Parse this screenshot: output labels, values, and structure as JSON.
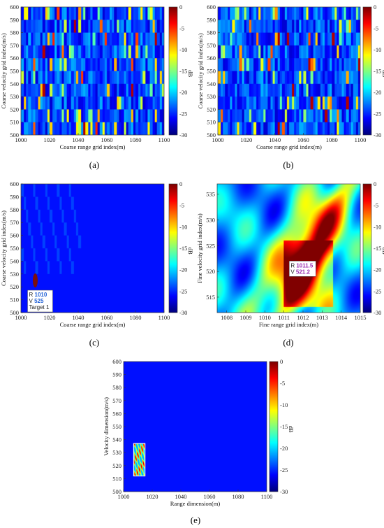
{
  "chart_data": [
    {
      "id": "a",
      "type": "heatmap",
      "caption": "(a)",
      "xlabel": "Coarse range grid index(m)",
      "ylabel": "Coarse velocity grid index(m/s)",
      "xlim": [
        1000,
        1100
      ],
      "ylim": [
        500,
        600
      ],
      "xticks": [
        "1000",
        "1020",
        "1040",
        "1060",
        "1080",
        "1100"
      ],
      "yticks": [
        "500",
        "510",
        "520",
        "530",
        "540",
        "550",
        "560",
        "570",
        "580",
        "590",
        "600"
      ],
      "colorbar": {
        "label": "dB",
        "range": [
          -30,
          0
        ],
        "ticks": [
          "0",
          "-5",
          "-10",
          "-15",
          "-20",
          "-25",
          "-30"
        ]
      },
      "pattern": "noisy-bands",
      "seed": 11,
      "density": 0.16
    },
    {
      "id": "b",
      "type": "heatmap",
      "caption": "(b)",
      "xlabel": "Coarse range grid index(m)",
      "ylabel": "Coarse velocity grid index(m/s)",
      "xlim": [
        1000,
        1100
      ],
      "ylim": [
        500,
        600
      ],
      "xticks": [
        "1000",
        "1020",
        "1040",
        "1060",
        "1080",
        "1100"
      ],
      "yticks": [
        "500",
        "510",
        "520",
        "530",
        "540",
        "550",
        "560",
        "570",
        "580",
        "590",
        "600"
      ],
      "colorbar": {
        "label": "dB",
        "range": [
          -30,
          0
        ],
        "ticks": [
          "0",
          "-5",
          "-10",
          "-15",
          "-20",
          "-25",
          "-30"
        ]
      },
      "pattern": "noisy-bands",
      "seed": 29,
      "density": 0.12
    },
    {
      "id": "c",
      "type": "heatmap",
      "caption": "(c)",
      "xlabel": "Coarse range grid index(m)",
      "ylabel": "Coarse velocity grid index(m/s)",
      "xlim": [
        1000,
        1100
      ],
      "ylim": [
        500,
        600
      ],
      "xticks": [
        "1000",
        "1020",
        "1040",
        "1060",
        "1080",
        "1100"
      ],
      "yticks": [
        "500",
        "510",
        "520",
        "530",
        "540",
        "550",
        "560",
        "570",
        "580",
        "590",
        "600"
      ],
      "colorbar": {
        "label": "dB",
        "range": [
          -30,
          0
        ],
        "ticks": [
          "0",
          "-5",
          "-10",
          "-15",
          "-20",
          "-25",
          "-30"
        ]
      },
      "pattern": "sparse-peak",
      "peak": {
        "x": 1010,
        "y": 525
      },
      "annotation": {
        "lines": [
          {
            "k": "R ",
            "v": "1010"
          },
          {
            "k": "V ",
            "v": "525"
          },
          {
            "k": "Target 1",
            "v": ""
          }
        ]
      }
    },
    {
      "id": "d",
      "type": "heatmap",
      "caption": "(d)",
      "xlabel": "Fine range grid index(m)",
      "ylabel": "Fine velocity grid index(m/s)",
      "xlim": [
        1007.5,
        1015
      ],
      "ylim": [
        512,
        537
      ],
      "xticks": [
        "1008",
        "1009",
        "1010",
        "1011",
        "1012",
        "1013",
        "1014",
        "1015"
      ],
      "yticks": [
        "515",
        "520",
        "525",
        "530",
        "535"
      ],
      "colorbar": {
        "label": "dB",
        "range": [
          -30,
          0
        ],
        "ticks": [
          "0",
          "-5",
          "-10",
          "-15",
          "-20",
          "-25",
          "-30"
        ]
      },
      "pattern": "smooth-fine",
      "peak": {
        "x": 1011.5,
        "y": 521.2
      },
      "annotation": {
        "lines": [
          {
            "k": "R ",
            "v": "1011.5"
          },
          {
            "k": "V ",
            "v": "521.2"
          }
        ]
      }
    },
    {
      "id": "e",
      "type": "heatmap",
      "caption": "(e)",
      "xlabel": "Range dimension(m)",
      "ylabel": "Velocity dimension(m/s)",
      "xlim": [
        1000,
        1100
      ],
      "ylim": [
        500,
        600
      ],
      "xticks": [
        "1000",
        "1020",
        "1040",
        "1060",
        "1080",
        "1100"
      ],
      "yticks": [
        "500",
        "510",
        "520",
        "530",
        "540",
        "550",
        "560",
        "570",
        "580",
        "590",
        "600"
      ],
      "colorbar": {
        "label": "dB",
        "range": [
          -30,
          0
        ],
        "ticks": [
          "0",
          "-5",
          "-10",
          "-15",
          "-20",
          "-25",
          "-30"
        ]
      },
      "pattern": "combined",
      "inset": {
        "x0": 1007,
        "x1": 1015,
        "y0": 512,
        "y1": 537
      }
    }
  ]
}
